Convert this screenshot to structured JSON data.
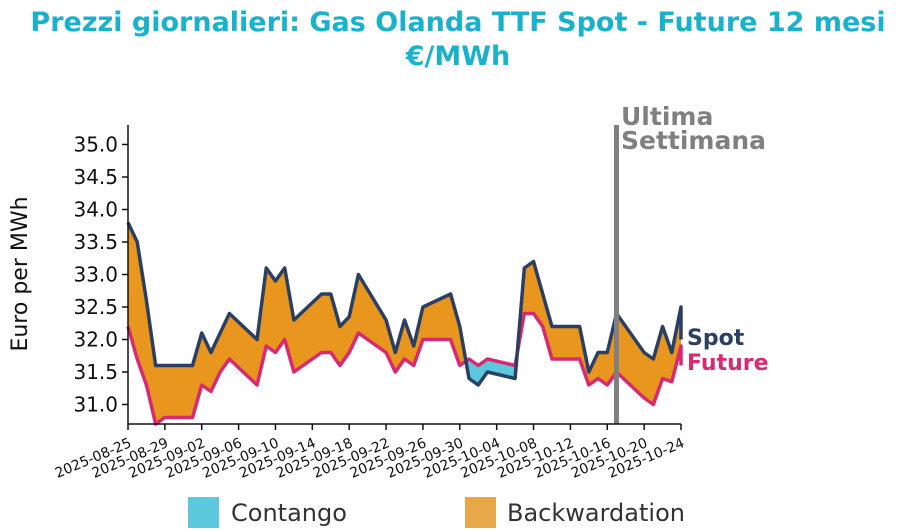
{
  "chart_data": {
    "type": "area",
    "title": "Prezzi giornalieri: Gas Olanda TTF Spot - Future 12 mesi",
    "subtitle": "€/MWh",
    "ylabel": "Euro per MWh",
    "xlabel": "",
    "ylim": [
      30.7,
      35.3
    ],
    "yticks": [
      31.0,
      31.5,
      32.0,
      32.5,
      33.0,
      33.5,
      34.0,
      34.5,
      35.0
    ],
    "ytick_labels": [
      "31.0",
      "31.5",
      "32.0",
      "32.5",
      "33.0",
      "33.5",
      "34.0",
      "34.5",
      "35.0"
    ],
    "xticks": [
      "2025-08-25",
      "2025-08-29",
      "2025-09-02",
      "2025-09-06",
      "2025-09-10",
      "2025-09-14",
      "2025-09-18",
      "2025-09-22",
      "2025-09-26",
      "2025-09-30",
      "2025-10-04",
      "2025-10-08",
      "2025-10-12",
      "2025-10-16",
      "2025-10-20",
      "2025-10-24"
    ],
    "x": [
      "2025-08-25",
      "2025-08-26",
      "2025-08-27",
      "2025-08-28",
      "2025-08-29",
      "2025-09-01",
      "2025-09-02",
      "2025-09-03",
      "2025-09-04",
      "2025-09-05",
      "2025-09-08",
      "2025-09-09",
      "2025-09-10",
      "2025-09-11",
      "2025-09-12",
      "2025-09-15",
      "2025-09-16",
      "2025-09-17",
      "2025-09-18",
      "2025-09-19",
      "2025-09-22",
      "2025-09-23",
      "2025-09-24",
      "2025-09-25",
      "2025-09-26",
      "2025-09-29",
      "2025-09-30",
      "2025-10-01",
      "2025-10-02",
      "2025-10-03",
      "2025-10-06",
      "2025-10-07",
      "2025-10-08",
      "2025-10-09",
      "2025-10-10",
      "2025-10-13",
      "2025-10-14",
      "2025-10-15",
      "2025-10-16",
      "2025-10-17",
      "2025-10-20",
      "2025-10-21",
      "2025-10-22",
      "2025-10-23",
      "2025-10-24"
    ],
    "series": [
      {
        "name": "Spot",
        "color": "#2b3f63",
        "values": [
          33.8,
          33.5,
          32.6,
          31.6,
          31.6,
          31.6,
          32.1,
          31.8,
          32.1,
          32.4,
          32.0,
          33.1,
          32.9,
          33.1,
          32.3,
          32.7,
          32.7,
          32.2,
          32.35,
          33.0,
          32.3,
          31.8,
          32.3,
          31.9,
          32.5,
          32.7,
          32.2,
          31.4,
          31.3,
          31.5,
          31.4,
          33.1,
          33.2,
          32.7,
          32.2,
          32.2,
          31.5,
          31.8,
          31.8,
          32.4,
          31.8,
          31.7,
          32.2,
          31.8,
          32.5
        ]
      },
      {
        "name": "Future",
        "color": "#d62a72",
        "values": [
          32.2,
          31.7,
          31.3,
          30.7,
          30.8,
          30.8,
          31.3,
          31.2,
          31.5,
          31.7,
          31.3,
          31.9,
          31.8,
          32.0,
          31.5,
          31.8,
          31.8,
          31.6,
          31.8,
          32.1,
          31.8,
          31.5,
          31.7,
          31.6,
          32.0,
          32.0,
          31.6,
          31.7,
          31.6,
          31.7,
          31.6,
          32.4,
          32.4,
          32.2,
          31.7,
          31.7,
          31.3,
          31.4,
          31.3,
          31.5,
          31.1,
          31.0,
          31.4,
          31.35,
          31.9
        ]
      }
    ],
    "series_tail": {
      "Spot": 32.0,
      "Future": 31.6
    },
    "fill_colors": {
      "Contango": "#5cc8dc",
      "Backwardation": "#e8961d"
    },
    "vertical_marker": {
      "date": "2025-10-17",
      "label_line1": "Ultima",
      "label_line2": "Settimana",
      "color": "#808080"
    },
    "end_labels": {
      "spot": "Spot",
      "future": "Future"
    },
    "legend": [
      {
        "label": "Contango",
        "color": "#5cc8dc"
      },
      {
        "label": "Backwardation",
        "color": "#e8a84a"
      }
    ]
  }
}
